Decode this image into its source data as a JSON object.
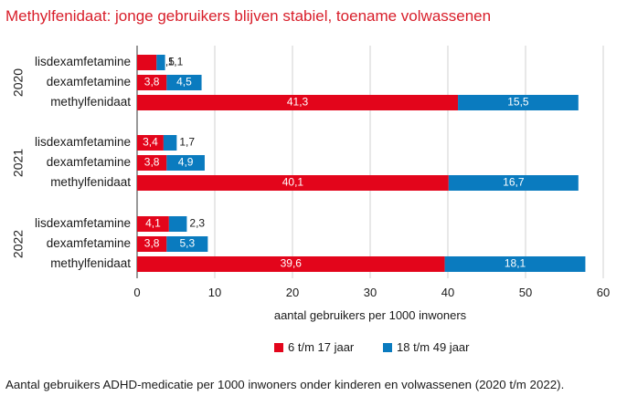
{
  "title": "Methylfenidaat: jonge gebruikers blijven stabiel, toename volwassenen",
  "caption": "Aantal gebruikers ADHD-medicatie per 1000 inwoners onder kinderen en volwassenen (2020 t/m 2022).",
  "colors": {
    "series1": "#e3051b",
    "series2": "#0a7bbf",
    "title": "#d81e2a",
    "grid": "#d0d0d0"
  },
  "chart_data": {
    "type": "bar",
    "orientation": "horizontal",
    "stacked": true,
    "title": "Methylfenidaat: jonge gebruikers blijven stabiel, toename volwassenen",
    "xlabel": "aantal gebruikers per 1000 inwoners",
    "xlim": [
      0,
      60
    ],
    "xticks": [
      0,
      10,
      20,
      30,
      40,
      50,
      60
    ],
    "grid": "vertical",
    "legend_position": "bottom",
    "series": [
      {
        "name": "6 t/m 17 jaar",
        "color": "#e3051b"
      },
      {
        "name": "18 t/m 49 jaar",
        "color": "#0a7bbf"
      }
    ],
    "groups": [
      {
        "label": "2020",
        "bars": [
          {
            "category": "lisdexamfetamine",
            "values": [
              2.5,
              1.1
            ],
            "labels": [
              "2,5",
              "1,1"
            ]
          },
          {
            "category": "dexamfetamine",
            "values": [
              3.8,
              4.5
            ],
            "labels": [
              "3,8",
              "4,5"
            ]
          },
          {
            "category": "methylfenidaat",
            "values": [
              41.3,
              15.5
            ],
            "labels": [
              "41,3",
              "15,5"
            ]
          }
        ]
      },
      {
        "label": "2021",
        "bars": [
          {
            "category": "lisdexamfetamine",
            "values": [
              3.4,
              1.7
            ],
            "labels": [
              "3,4",
              "1,7"
            ]
          },
          {
            "category": "dexamfetamine",
            "values": [
              3.8,
              4.9
            ],
            "labels": [
              "3,8",
              "4,9"
            ]
          },
          {
            "category": "methylfenidaat",
            "values": [
              40.1,
              16.7
            ],
            "labels": [
              "40,1",
              "16,7"
            ]
          }
        ]
      },
      {
        "label": "2022",
        "bars": [
          {
            "category": "lisdexamfetamine",
            "values": [
              4.1,
              2.3
            ],
            "labels": [
              "4,1",
              "2,3"
            ]
          },
          {
            "category": "dexamfetamine",
            "values": [
              3.8,
              5.3
            ],
            "labels": [
              "3,8",
              "5,3"
            ]
          },
          {
            "category": "methylfenidaat",
            "values": [
              39.6,
              18.1
            ],
            "labels": [
              "39,6",
              "18,1"
            ]
          }
        ]
      }
    ]
  }
}
